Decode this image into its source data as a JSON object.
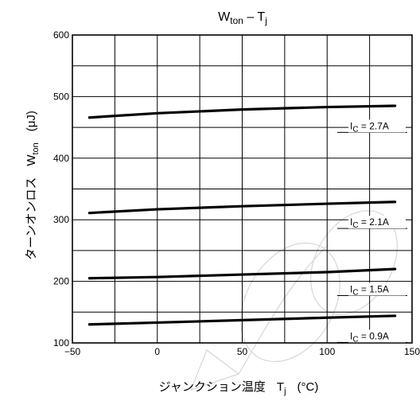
{
  "chart_data": {
    "type": "line",
    "title": {
      "main": "W",
      "sub": "ton",
      "dash": " – T",
      "sub2": "j"
    },
    "xlabel": {
      "text": "ジャンクション温度",
      "symbol": "T",
      "symbol_sub": "j",
      "unit": "(°C)"
    },
    "ylabel": {
      "text": "ターンオンロス",
      "symbol": "W",
      "symbol_sub": "ton",
      "unit": "(μJ)"
    },
    "xlim": [
      -50,
      150
    ],
    "ylim": [
      100,
      600
    ],
    "xticks": [
      -50,
      0,
      50,
      100,
      150
    ],
    "xtick_labels": [
      "−50",
      "0",
      "50",
      "100",
      "150"
    ],
    "yticks": [
      100,
      200,
      300,
      400,
      500,
      600
    ],
    "ytick_labels": [
      "100",
      "200",
      "300",
      "400",
      "500",
      "600"
    ],
    "grid": true,
    "series": [
      {
        "name": "I_C = 2.7A",
        "label_main": "I",
        "label_sub": "C",
        "label_tail": " = 2.7A",
        "x": [
          -40,
          0,
          50,
          100,
          140
        ],
        "y": [
          466,
          473,
          479,
          483,
          485
        ]
      },
      {
        "name": "I_C = 2.1A",
        "label_main": "I",
        "label_sub": "C",
        "label_tail": " = 2.1A",
        "x": [
          -40,
          0,
          50,
          100,
          140
        ],
        "y": [
          311,
          317,
          322,
          326,
          329
        ]
      },
      {
        "name": "I_C = 1.5A",
        "label_main": "I",
        "label_sub": "C",
        "label_tail": " = 1.5A",
        "x": [
          -40,
          0,
          50,
          100,
          140
        ],
        "y": [
          205,
          207,
          211,
          215,
          220
        ]
      },
      {
        "name": "I_C = 0.9A",
        "label_main": "I",
        "label_sub": "C",
        "label_tail": " = 0.9A",
        "x": [
          -40,
          0,
          50,
          100,
          140
        ],
        "y": [
          130,
          133,
          137,
          141,
          144
        ]
      }
    ]
  }
}
